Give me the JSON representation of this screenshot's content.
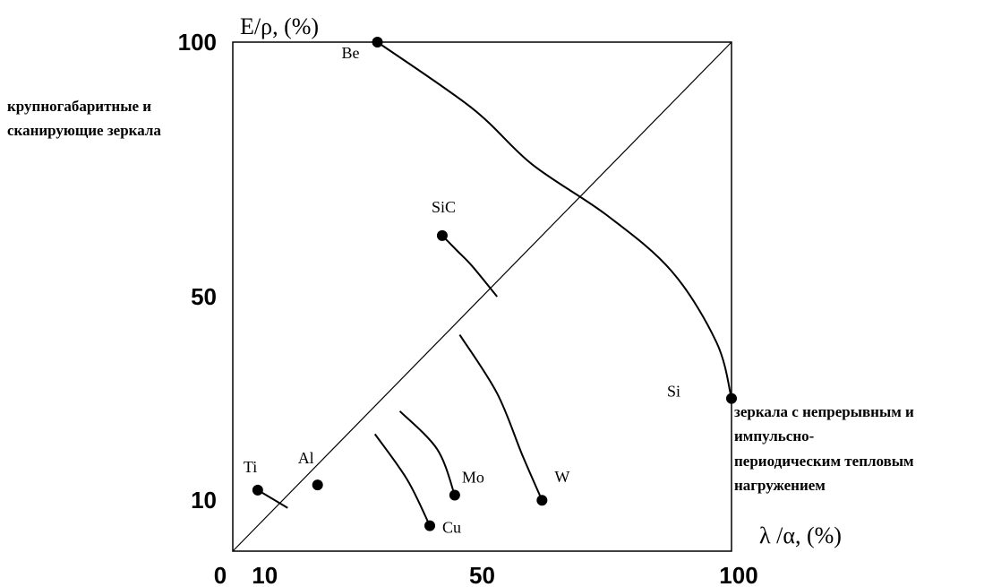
{
  "chart_data": {
    "type": "scatter",
    "title": "",
    "xlabel": "λ /α, (%)",
    "ylabel": "E/ρ, (%)",
    "xlim": [
      0,
      100
    ],
    "ylim": [
      0,
      100
    ],
    "x_ticks": [
      {
        "value": 0,
        "label": "0"
      },
      {
        "value": 10,
        "label": "10"
      },
      {
        "value": 50,
        "label": "50"
      },
      {
        "value": 100,
        "label": "100"
      }
    ],
    "y_ticks": [
      {
        "value": 10,
        "label": "10"
      },
      {
        "value": 50,
        "label": "50"
      },
      {
        "value": 100,
        "label": "100"
      }
    ],
    "points": [
      {
        "name": "Be",
        "x": 29,
        "y": 100,
        "label_dx": -40,
        "label_dy": 18
      },
      {
        "name": "SiC",
        "x": 42,
        "y": 62,
        "label_dx": -12,
        "label_dy": -26
      },
      {
        "name": "Si",
        "x": 100,
        "y": 30,
        "label_dx": -72,
        "label_dy": -2
      },
      {
        "name": "Ti",
        "x": 5,
        "y": 12,
        "label_dx": -16,
        "label_dy": -20
      },
      {
        "name": "Al",
        "x": 17,
        "y": 13,
        "label_dx": -22,
        "label_dy": -24
      },
      {
        "name": "Mo",
        "x": 44.5,
        "y": 11,
        "label_dx": 8,
        "label_dy": -14
      },
      {
        "name": "W",
        "x": 62,
        "y": 10,
        "label_dx": 14,
        "label_dy": -20
      },
      {
        "name": "Cu",
        "x": 39.5,
        "y": 5,
        "label_dx": 14,
        "label_dy": 8
      }
    ],
    "curves": [
      {
        "name": "Be-Si",
        "points": [
          [
            29,
            100
          ],
          [
            48,
            87
          ],
          [
            60,
            76
          ],
          [
            75,
            66
          ],
          [
            88,
            55
          ],
          [
            97,
            41
          ],
          [
            100,
            30
          ]
        ]
      },
      {
        "name": "SiC",
        "points": [
          [
            42,
            62
          ],
          [
            45,
            59
          ],
          [
            48,
            56
          ],
          [
            53,
            50
          ]
        ]
      },
      {
        "name": "W",
        "points": [
          [
            62,
            10
          ],
          [
            58,
            19
          ],
          [
            53,
            31
          ],
          [
            45.5,
            42.5
          ]
        ]
      },
      {
        "name": "Mo",
        "points": [
          [
            44.5,
            11
          ],
          [
            41,
            20
          ],
          [
            33.5,
            27.5
          ]
        ]
      },
      {
        "name": "Cu",
        "points": [
          [
            39.5,
            5
          ],
          [
            35,
            14
          ],
          [
            28.5,
            23
          ]
        ]
      },
      {
        "name": "Ti",
        "points": [
          [
            5,
            12
          ],
          [
            11,
            8.5
          ]
        ]
      }
    ],
    "annotations": {
      "top_left": [
        "крупногабаритные и",
        "сканирующие зеркала"
      ],
      "right": [
        "зеркала с непрерывным и",
        "импульсно-",
        "периодическим тепловым",
        "нагружением"
      ]
    },
    "grid": false,
    "legend": "none"
  }
}
